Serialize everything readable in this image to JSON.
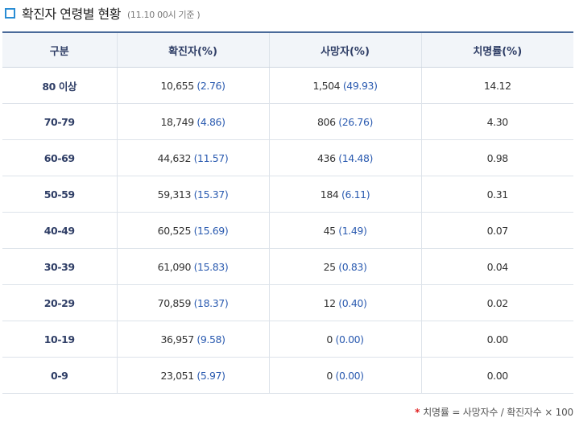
{
  "title": {
    "main": "확진자 연령별 현황",
    "sub": "(11.10 00시 기준 )"
  },
  "table": {
    "headers": [
      "구분",
      "확진자(%)",
      "사망자(%)",
      "치명률(%)"
    ],
    "rows": [
      {
        "age": "80 이상",
        "confirmed": "10,655",
        "confirmed_pct": "(2.76)",
        "deaths": "1,504",
        "deaths_pct": "(49.93)",
        "fatality": "14.12"
      },
      {
        "age": "70-79",
        "confirmed": "18,749",
        "confirmed_pct": "(4.86)",
        "deaths": "806",
        "deaths_pct": "(26.76)",
        "fatality": "4.30"
      },
      {
        "age": "60-69",
        "confirmed": "44,632",
        "confirmed_pct": "(11.57)",
        "deaths": "436",
        "deaths_pct": "(14.48)",
        "fatality": "0.98"
      },
      {
        "age": "50-59",
        "confirmed": "59,313",
        "confirmed_pct": "(15.37)",
        "deaths": "184",
        "deaths_pct": "(6.11)",
        "fatality": "0.31"
      },
      {
        "age": "40-49",
        "confirmed": "60,525",
        "confirmed_pct": "(15.69)",
        "deaths": "45",
        "deaths_pct": "(1.49)",
        "fatality": "0.07"
      },
      {
        "age": "30-39",
        "confirmed": "61,090",
        "confirmed_pct": "(15.83)",
        "deaths": "25",
        "deaths_pct": "(0.83)",
        "fatality": "0.04"
      },
      {
        "age": "20-29",
        "confirmed": "70,859",
        "confirmed_pct": "(18.37)",
        "deaths": "12",
        "deaths_pct": "(0.40)",
        "fatality": "0.02"
      },
      {
        "age": "10-19",
        "confirmed": "36,957",
        "confirmed_pct": "(9.58)",
        "deaths": "0",
        "deaths_pct": "(0.00)",
        "fatality": "0.00"
      },
      {
        "age": "0-9",
        "confirmed": "23,051",
        "confirmed_pct": "(5.97)",
        "deaths": "0",
        "deaths_pct": "(0.00)",
        "fatality": "0.00"
      }
    ]
  },
  "footnote": {
    "star": "*",
    "text": "치명률 = 사망자수 / 확진자수 × 100"
  },
  "colors": {
    "accent": "#2a8dd4",
    "header_text": "#2f3e66",
    "percent_text": "#2b5bb0"
  }
}
